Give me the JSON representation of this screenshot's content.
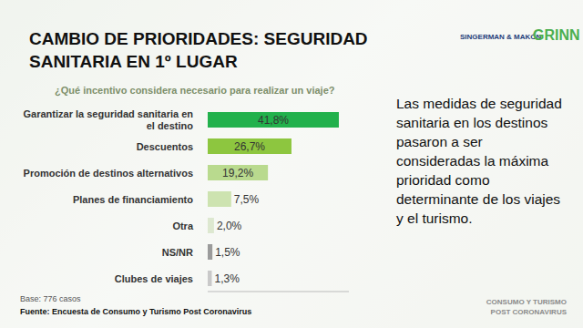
{
  "chart_data": {
    "type": "bar",
    "orientation": "horizontal",
    "title": "CAMBIO DE PRIORIDADES: SEGURIDAD SANITARIA EN 1º LUGAR",
    "subtitle": "¿Qué incentivo considera necesario para realizar un viaje?",
    "categories": [
      "Garantizar la seguridad sanitaria en el destino",
      "Descuentos",
      "Promoción de destinos alternativos",
      "Planes de financiamiento",
      "Otra",
      "NS/NR",
      "Clubes de viajes"
    ],
    "values": [
      41.8,
      26.7,
      19.2,
      7.5,
      2.0,
      1.5,
      1.3
    ],
    "value_labels": [
      "41,8%",
      "26,7%",
      "19,2%",
      "7,5%",
      "2,0%",
      "1,5%",
      "1,3%"
    ],
    "colors": [
      "#22b14c",
      "#8dc63f",
      "#b9da8e",
      "#cde3b0",
      "#dde8d0",
      "#9b9b9b",
      "#c9c9c9"
    ],
    "xlim": [
      0,
      45
    ],
    "data_labels": true,
    "tick_labels": "y",
    "grid": false,
    "annotation": "Las medidas de seguridad sanitaria en los destinos pasaron a ser consideradas la máxima prioridad como determinante de los viajes y el turismo.",
    "note": "Base: 776 casos",
    "source": "Fuente: Encuesta de Consumo y Turismo Post Coronavirus",
    "logos": [
      "SINGERMAN & MAKÓN",
      "GRINN"
    ],
    "footer": [
      "CONSUMO Y TURISMO",
      "POST CORONAVIRUS"
    ]
  }
}
